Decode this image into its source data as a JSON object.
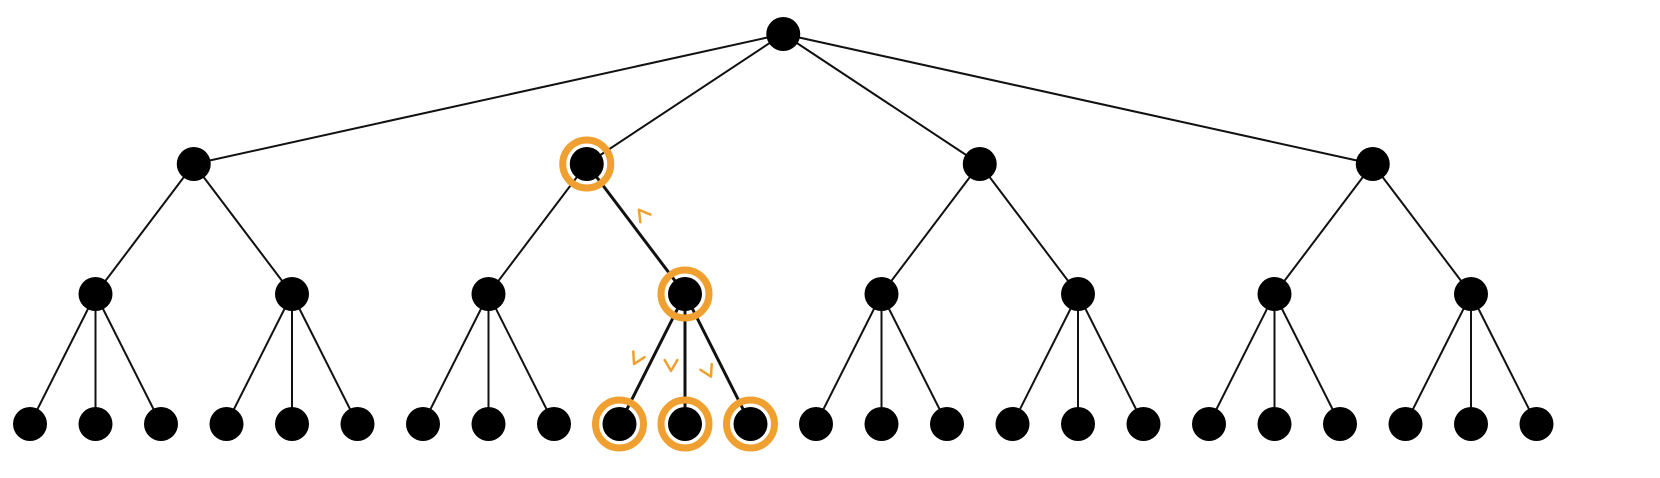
{
  "diagram": {
    "type": "tree",
    "levels": 4,
    "node_color": "#000000",
    "edge_color": "#111111",
    "highlight_color": "#F0A030",
    "tree": {
      "id": "root",
      "children": [
        {
          "id": "a",
          "children": [
            {
              "id": "a1",
              "children": [
                {
                  "id": "a1x"
                },
                {
                  "id": "a1y"
                },
                {
                  "id": "a1z"
                }
              ]
            },
            {
              "id": "a2",
              "children": [
                {
                  "id": "a2x"
                },
                {
                  "id": "a2y"
                },
                {
                  "id": "a2z"
                }
              ]
            }
          ]
        },
        {
          "id": "b",
          "highlighted": true,
          "children": [
            {
              "id": "b1",
              "children": [
                {
                  "id": "b1x"
                },
                {
                  "id": "b1y"
                },
                {
                  "id": "b1z"
                }
              ]
            },
            {
              "id": "b2",
              "highlighted": true,
              "children": [
                {
                  "id": "b2x",
                  "highlighted": true
                },
                {
                  "id": "b2y",
                  "highlighted": true
                },
                {
                  "id": "b2z",
                  "highlighted": true
                }
              ]
            }
          ]
        },
        {
          "id": "c",
          "children": [
            {
              "id": "c1",
              "children": [
                {
                  "id": "c1x"
                },
                {
                  "id": "c1y"
                },
                {
                  "id": "c1z"
                }
              ]
            },
            {
              "id": "c2",
              "children": [
                {
                  "id": "c2x"
                },
                {
                  "id": "c2y"
                },
                {
                  "id": "c2z"
                }
              ]
            }
          ]
        },
        {
          "id": "d",
          "children": [
            {
              "id": "d1",
              "children": [
                {
                  "id": "d1x"
                },
                {
                  "id": "d1y"
                },
                {
                  "id": "d1z"
                }
              ]
            },
            {
              "id": "d2",
              "children": [
                {
                  "id": "d2x"
                },
                {
                  "id": "d2y"
                },
                {
                  "id": "d2z"
                }
              ]
            }
          ]
        }
      ]
    },
    "arrows": [
      {
        "from": "b2",
        "to": "b",
        "direction": "up"
      },
      {
        "from": "b2",
        "to": "b2x",
        "direction": "down"
      },
      {
        "from": "b2",
        "to": "b2y",
        "direction": "down"
      },
      {
        "from": "b2",
        "to": "b2z",
        "direction": "down"
      }
    ]
  }
}
